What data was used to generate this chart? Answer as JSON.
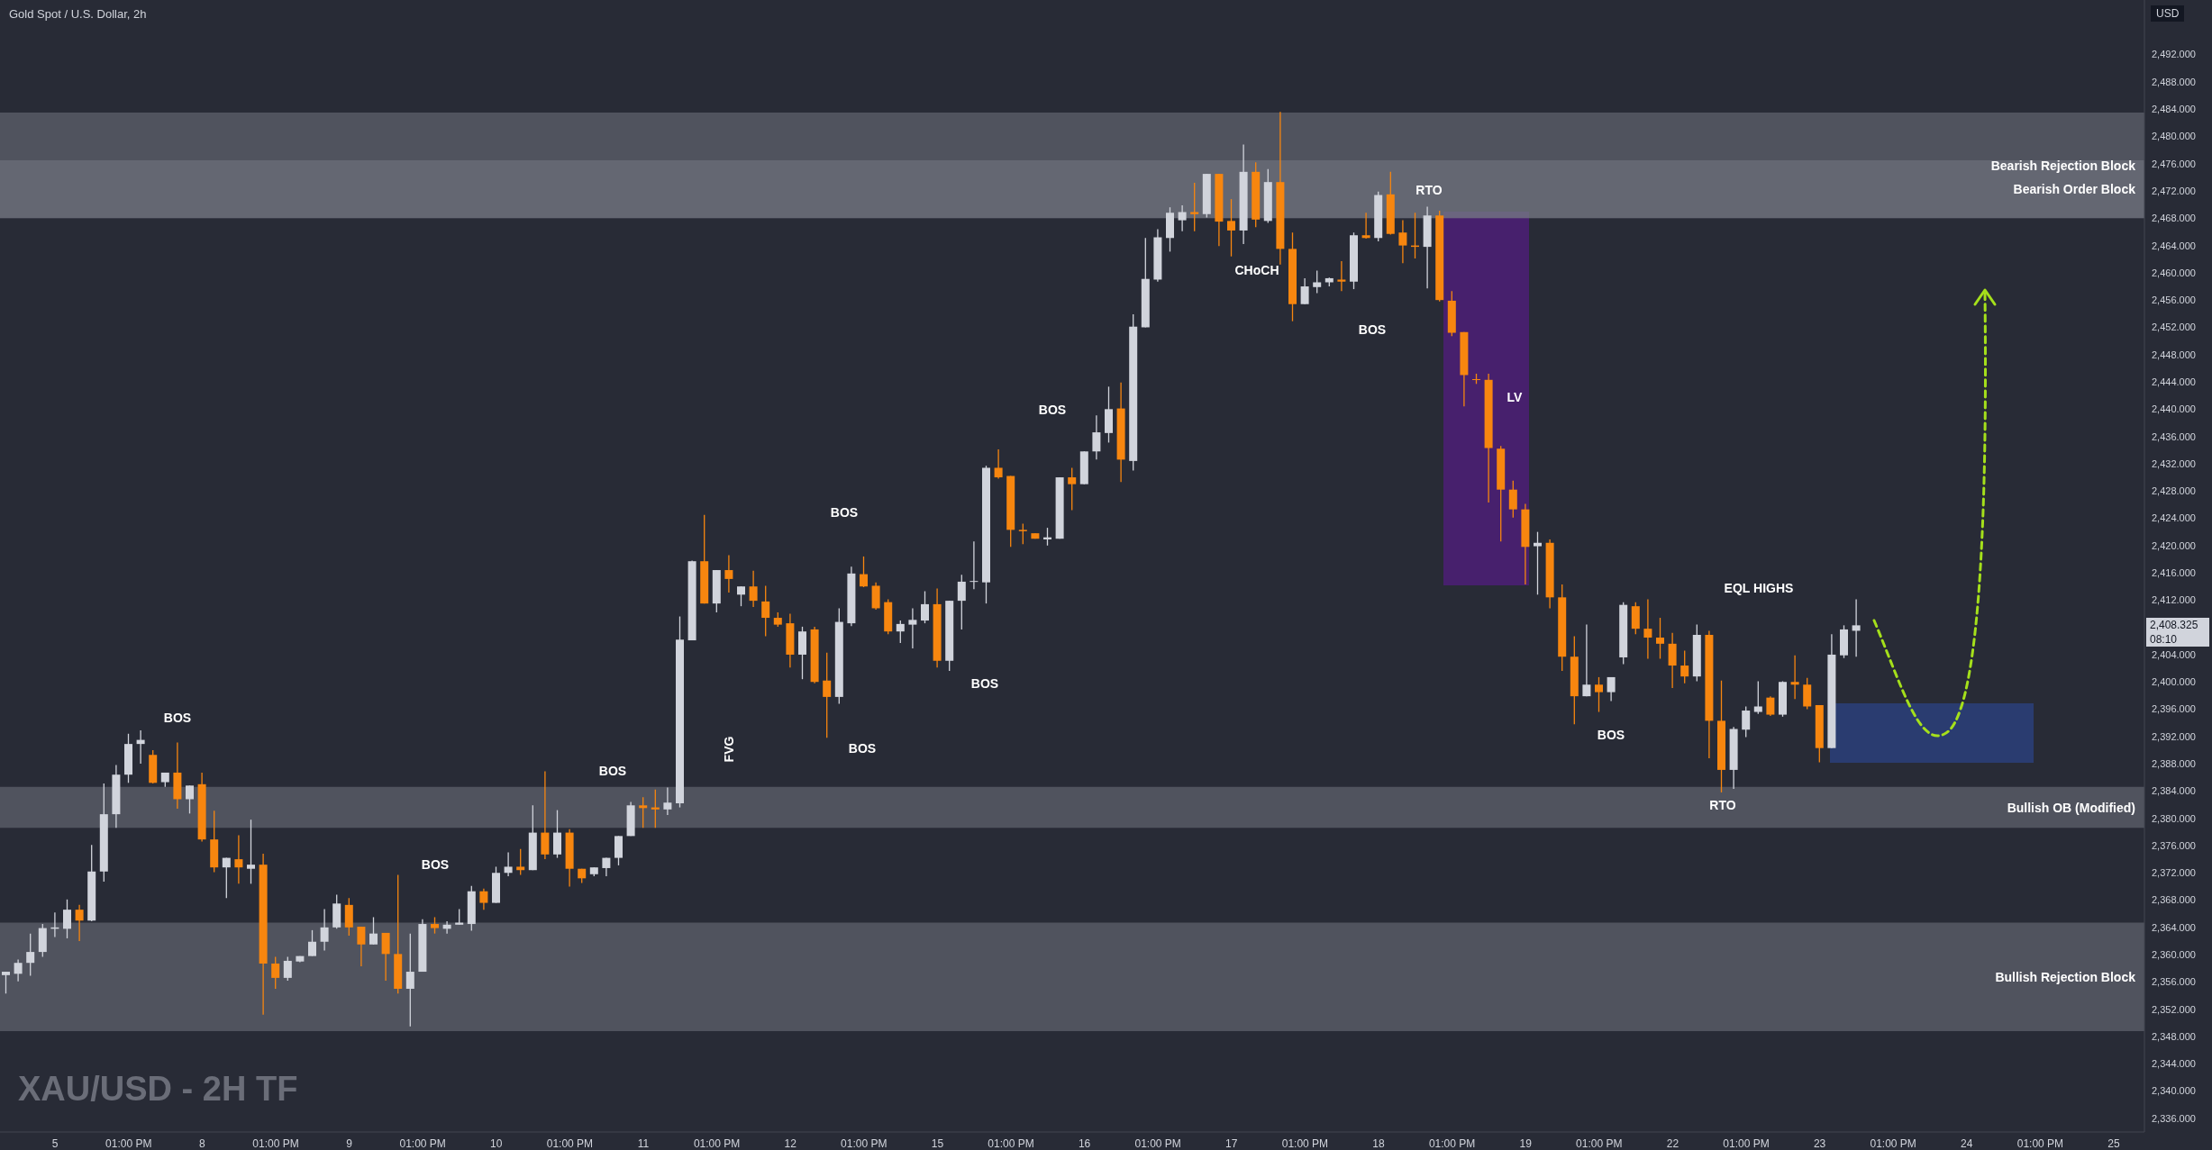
{
  "chart_data": {
    "type": "candlestick",
    "title": "Gold Spot / U.S. Dollar, 2h",
    "ylabel": "USD",
    "categories": [
      null,
      null,
      null,
      null,
      "5",
      null,
      null,
      null,
      null,
      null,
      "01:00 PM",
      null,
      null,
      null,
      null,
      null,
      "8",
      null,
      null,
      null,
      null,
      null,
      "01:00 PM",
      null,
      null,
      null,
      null,
      null,
      "9",
      null,
      null,
      null,
      null,
      null,
      "01:00 PM",
      null,
      null,
      null,
      null,
      null,
      "10",
      null,
      null,
      null,
      null,
      null,
      "01:00 PM",
      null,
      null,
      null,
      null,
      null,
      "11",
      null,
      null,
      null,
      null,
      null,
      "01:00 PM",
      null,
      null,
      null,
      null,
      null,
      "12",
      null,
      null,
      null,
      null,
      null,
      "01:00 PM",
      null,
      null,
      null,
      null,
      null,
      "15",
      null,
      null,
      null,
      null,
      null,
      "01:00 PM",
      null,
      null,
      null,
      null,
      null,
      "16",
      null,
      null,
      null,
      null,
      null,
      "01:00 PM",
      null,
      null,
      null,
      null,
      null,
      "17",
      null,
      null,
      null,
      null,
      null,
      "01:00 PM",
      null,
      null,
      null,
      null,
      null,
      "18",
      null,
      null,
      null,
      null,
      null,
      "01:00 PM",
      null,
      null,
      null,
      null,
      null,
      "19",
      null,
      null,
      null,
      null,
      null,
      "01:00 PM",
      null,
      null,
      null,
      null,
      null,
      "22",
      null,
      null,
      null,
      null,
      null,
      "01:00 PM",
      null,
      null,
      null,
      null,
      null,
      "23",
      null,
      null,
      null,
      null,
      null,
      "01:00 PM",
      null,
      null,
      null,
      null,
      null,
      "24",
      null,
      null,
      null,
      null,
      null,
      "01:00 PM",
      null,
      null,
      null,
      null,
      null,
      "25",
      null,
      null
    ],
    "ohlc": [
      [
        2357.0,
        2357.5,
        2354.3,
        2357.5
      ],
      [
        2357.2,
        2359.3,
        2356.1,
        2358.8
      ],
      [
        2358.8,
        2363.1,
        2356.9,
        2360.4
      ],
      [
        2360.4,
        2364.5,
        2359.7,
        2363.9
      ],
      [
        2363.8,
        2366.2,
        2362.6,
        2364.0
      ],
      [
        2363.8,
        2368.1,
        2362.4,
        2366.6
      ],
      [
        2366.6,
        2367.3,
        2362.0,
        2365.0
      ],
      [
        2365.0,
        2376.1,
        2364.9,
        2372.2
      ],
      [
        2372.2,
        2385.1,
        2370.7,
        2380.6
      ],
      [
        2380.6,
        2387.8,
        2378.6,
        2386.4
      ],
      [
        2386.4,
        2392.4,
        2385.2,
        2390.9
      ],
      [
        2390.9,
        2392.9,
        2388.0,
        2391.5
      ],
      [
        2389.3,
        2390.0,
        2385.1,
        2385.2
      ],
      [
        2385.3,
        2386.7,
        2384.6,
        2386.7
      ],
      [
        2386.7,
        2391.1,
        2381.4,
        2382.8
      ],
      [
        2382.8,
        2384.8,
        2380.7,
        2384.8
      ],
      [
        2385.0,
        2386.7,
        2376.6,
        2376.9
      ],
      [
        2376.9,
        2381.1,
        2372.1,
        2372.8
      ],
      [
        2372.8,
        2374.2,
        2368.3,
        2374.2
      ],
      [
        2374.0,
        2377.5,
        2370.4,
        2372.8
      ],
      [
        2372.6,
        2379.8,
        2370.4,
        2373.2
      ],
      [
        2373.2,
        2374.8,
        2351.2,
        2358.7
      ],
      [
        2358.7,
        2359.7,
        2355.0,
        2356.6
      ],
      [
        2356.6,
        2359.7,
        2356.2,
        2359.1
      ],
      [
        2359.0,
        2359.8,
        2358.9,
        2359.8
      ],
      [
        2359.8,
        2363.6,
        2359.8,
        2361.9
      ],
      [
        2361.9,
        2366.7,
        2360.6,
        2364.0
      ],
      [
        2364.0,
        2368.8,
        2363.8,
        2367.5
      ],
      [
        2367.3,
        2368.3,
        2362.8,
        2364.0
      ],
      [
        2364.1,
        2364.1,
        2358.3,
        2361.5
      ],
      [
        2361.5,
        2365.5,
        2361.5,
        2363.1
      ],
      [
        2363.2,
        2363.2,
        2356.2,
        2360.1
      ],
      [
        2360.1,
        2371.7,
        2354.3,
        2355.0
      ],
      [
        2355.0,
        2363.1,
        2349.5,
        2357.5
      ],
      [
        2357.5,
        2365.2,
        2357.5,
        2364.5
      ],
      [
        2364.5,
        2365.5,
        2363.1,
        2363.9
      ],
      [
        2363.8,
        2364.9,
        2363.1,
        2364.4
      ],
      [
        2364.4,
        2366.7,
        2364.4,
        2364.7
      ],
      [
        2364.5,
        2370.1,
        2363.5,
        2369.3
      ],
      [
        2369.3,
        2369.7,
        2366.6,
        2367.6
      ],
      [
        2367.6,
        2372.9,
        2367.6,
        2372.0
      ],
      [
        2372.0,
        2375.0,
        2371.5,
        2372.9
      ],
      [
        2372.9,
        2375.5,
        2371.7,
        2372.4
      ],
      [
        2372.4,
        2381.9,
        2372.4,
        2377.9
      ],
      [
        2377.9,
        2386.9,
        2374.0,
        2374.7
      ],
      [
        2374.7,
        2381.2,
        2374.2,
        2377.9
      ],
      [
        2377.9,
        2378.4,
        2370.0,
        2372.6
      ],
      [
        2372.6,
        2372.6,
        2370.5,
        2371.2
      ],
      [
        2371.8,
        2372.8,
        2371.5,
        2372.8
      ],
      [
        2372.7,
        2374.2,
        2371.5,
        2374.2
      ],
      [
        2374.2,
        2377.4,
        2373.1,
        2377.4
      ],
      [
        2377.4,
        2382.4,
        2377.4,
        2381.9
      ],
      [
        2381.9,
        2383.1,
        2378.6,
        2381.5
      ],
      [
        2381.6,
        2384.2,
        2378.6,
        2381.3
      ],
      [
        2381.3,
        2384.5,
        2380.5,
        2382.3
      ],
      [
        2382.2,
        2409.6,
        2381.6,
        2406.2
      ],
      [
        2406.1,
        2417.8,
        2406.1,
        2417.7
      ],
      [
        2417.7,
        2424.5,
        2411.5,
        2411.5
      ],
      [
        2411.5,
        2416.4,
        2410.2,
        2416.4
      ],
      [
        2416.4,
        2418.6,
        2413.1,
        2415.1
      ],
      [
        2412.8,
        2414.0,
        2411.1,
        2414.0
      ],
      [
        2414.0,
        2416.3,
        2411.0,
        2411.9
      ],
      [
        2411.8,
        2414.1,
        2406.7,
        2409.4
      ],
      [
        2409.4,
        2410.2,
        2408.1,
        2408.4
      ],
      [
        2408.6,
        2410.0,
        2402.1,
        2404.0
      ],
      [
        2404.0,
        2408.1,
        2400.4,
        2407.4
      ],
      [
        2407.7,
        2408.1,
        2399.8,
        2400.0
      ],
      [
        2400.2,
        2404.3,
        2391.8,
        2397.8
      ],
      [
        2397.8,
        2410.8,
        2396.8,
        2408.8
      ],
      [
        2408.6,
        2416.9,
        2408.2,
        2415.9
      ],
      [
        2415.8,
        2418.4,
        2413.9,
        2414.0
      ],
      [
        2414.1,
        2414.6,
        2410.6,
        2410.8
      ],
      [
        2411.7,
        2412.1,
        2407.0,
        2407.4
      ],
      [
        2407.4,
        2409.0,
        2405.7,
        2408.5
      ],
      [
        2408.4,
        2410.8,
        2404.9,
        2409.1
      ],
      [
        2409.0,
        2413.3,
        2408.6,
        2411.4
      ],
      [
        2411.4,
        2413.7,
        2402.1,
        2403.1
      ],
      [
        2403.1,
        2411.9,
        2401.6,
        2411.9
      ],
      [
        2411.9,
        2415.7,
        2407.7,
        2414.7
      ],
      [
        2414.7,
        2420.6,
        2413.6,
        2414.8
      ],
      [
        2414.6,
        2431.7,
        2411.5,
        2431.4
      ],
      [
        2431.4,
        2434.1,
        2429.8,
        2430.0
      ],
      [
        2430.2,
        2430.2,
        2419.8,
        2422.3
      ],
      [
        2422.3,
        2423.2,
        2420.2,
        2422.1
      ],
      [
        2421.8,
        2421.8,
        2421.0,
        2421.0
      ],
      [
        2420.9,
        2422.6,
        2420.0,
        2421.2
      ],
      [
        2421.0,
        2430.0,
        2421.0,
        2430.0
      ],
      [
        2430.0,
        2431.4,
        2425.2,
        2429.0
      ],
      [
        2429.0,
        2433.8,
        2429.0,
        2433.8
      ],
      [
        2433.8,
        2439.1,
        2432.6,
        2436.6
      ],
      [
        2436.5,
        2443.3,
        2435.1,
        2440.0
      ],
      [
        2440.1,
        2443.9,
        2429.3,
        2432.6
      ],
      [
        2432.4,
        2453.9,
        2431.0,
        2452.1
      ],
      [
        2452.0,
        2465.1,
        2452.0,
        2459.1
      ],
      [
        2459.0,
        2466.4,
        2458.7,
        2465.2
      ],
      [
        2465.1,
        2469.6,
        2463.1,
        2468.8
      ],
      [
        2467.7,
        2469.9,
        2466.1,
        2468.9
      ],
      [
        2468.9,
        2473.2,
        2466.1,
        2468.6
      ],
      [
        2468.6,
        2474.5,
        2468.1,
        2474.5
      ],
      [
        2474.5,
        2474.5,
        2463.9,
        2467.5
      ],
      [
        2467.6,
        2470.8,
        2462.4,
        2466.2
      ],
      [
        2466.2,
        2478.8,
        2464.2,
        2474.8
      ],
      [
        2474.8,
        2476.2,
        2466.7,
        2467.8
      ],
      [
        2467.6,
        2475.2,
        2467.3,
        2473.3
      ],
      [
        2473.3,
        2483.6,
        2461.2,
        2463.5
      ],
      [
        2463.5,
        2465.9,
        2452.9,
        2455.4
      ],
      [
        2455.4,
        2459.2,
        2455.4,
        2458.0
      ],
      [
        2457.9,
        2460.3,
        2457.0,
        2458.6
      ],
      [
        2458.6,
        2459.3,
        2458.0,
        2459.2
      ],
      [
        2459.0,
        2461.7,
        2457.3,
        2458.7
      ],
      [
        2458.7,
        2465.9,
        2457.6,
        2465.5
      ],
      [
        2465.5,
        2468.8,
        2465.0,
        2465.1
      ],
      [
        2465.1,
        2471.9,
        2464.6,
        2471.4
      ],
      [
        2471.5,
        2474.8,
        2465.6,
        2465.7
      ],
      [
        2465.9,
        2467.7,
        2461.4,
        2464.0
      ],
      [
        2464.0,
        2468.8,
        2462.1,
        2463.8
      ],
      [
        2463.8,
        2469.7,
        2457.7,
        2468.4
      ],
      [
        2468.4,
        2469.1,
        2455.8,
        2456.0
      ],
      [
        2455.9,
        2457.3,
        2450.7,
        2451.2
      ],
      [
        2451.3,
        2451.3,
        2440.4,
        2445.0
      ],
      [
        2444.4,
        2445.2,
        2443.7,
        2444.3
      ],
      [
        2444.3,
        2445.2,
        2426.3,
        2434.3
      ],
      [
        2434.2,
        2434.6,
        2420.6,
        2428.2
      ],
      [
        2428.2,
        2429.5,
        2424.1,
        2425.3
      ],
      [
        2425.3,
        2426.1,
        2414.3,
        2419.8
      ],
      [
        2419.9,
        2422.0,
        2412.8,
        2420.4
      ],
      [
        2420.4,
        2420.9,
        2410.8,
        2412.4
      ],
      [
        2412.4,
        2414.3,
        2401.6,
        2403.7
      ],
      [
        2403.7,
        2406.7,
        2393.8,
        2397.9
      ],
      [
        2397.9,
        2408.4,
        2397.9,
        2399.6
      ],
      [
        2399.6,
        2400.7,
        2395.6,
        2398.5
      ],
      [
        2398.5,
        2400.7,
        2397.2,
        2400.7
      ],
      [
        2403.6,
        2411.7,
        2402.6,
        2411.3
      ],
      [
        2411.1,
        2411.7,
        2407.0,
        2407.8
      ],
      [
        2407.8,
        2412.1,
        2403.4,
        2406.5
      ],
      [
        2406.5,
        2409.4,
        2403.4,
        2405.6
      ],
      [
        2405.6,
        2407.2,
        2399.1,
        2402.4
      ],
      [
        2402.4,
        2404.6,
        2399.8,
        2400.8
      ],
      [
        2400.8,
        2408.4,
        2400.1,
        2406.9
      ],
      [
        2406.9,
        2407.5,
        2388.8,
        2394.3
      ],
      [
        2394.3,
        2400.2,
        2383.8,
        2387.1
      ],
      [
        2387.1,
        2393.4,
        2384.3,
        2393.1
      ],
      [
        2393.0,
        2396.4,
        2391.9,
        2395.8
      ],
      [
        2395.6,
        2400.1,
        2395.3,
        2396.4
      ],
      [
        2397.7,
        2397.9,
        2395.0,
        2395.2
      ],
      [
        2395.2,
        2400.1,
        2394.9,
        2400.0
      ],
      [
        2400.0,
        2403.9,
        2397.5,
        2399.6
      ],
      [
        2399.6,
        2400.6,
        2396.0,
        2396.4
      ],
      [
        2396.6,
        2396.6,
        2388.2,
        2390.3
      ],
      [
        2390.3,
        2407.0,
        2390.3,
        2404.0
      ],
      [
        2403.9,
        2408.3,
        2403.5,
        2407.7
      ],
      [
        2407.5,
        2412.1,
        2403.7,
        2408.3
      ],
      null,
      null,
      null,
      null,
      null,
      null,
      null,
      null,
      null,
      null,
      null,
      null,
      null,
      null,
      null,
      null,
      null,
      null,
      null,
      null,
      null,
      null,
      null
    ],
    "colors": [
      "#d1d4dc",
      "#d1d4dc",
      "#d1d4dc",
      "#d1d4dc",
      "#d1d4dc",
      "#d1d4dc",
      "#f7860f",
      "#d1d4dc",
      "#d1d4dc",
      "#d1d4dc",
      "#d1d4dc",
      "#d1d4dc",
      "#f7860f",
      "#d1d4dc",
      "#f7860f",
      "#d1d4dc",
      "#f7860f",
      "#f7860f",
      "#d1d4dc",
      "#f7860f",
      "#d1d4dc",
      "#f7860f",
      "#f7860f",
      "#d1d4dc",
      "#d1d4dc",
      "#d1d4dc",
      "#d1d4dc",
      "#d1d4dc",
      "#f7860f",
      "#f7860f",
      "#d1d4dc",
      "#f7860f",
      "#f7860f",
      "#d1d4dc",
      "#d1d4dc",
      "#f7860f",
      "#d1d4dc",
      "#d1d4dc",
      "#d1d4dc",
      "#f7860f",
      "#d1d4dc",
      "#d1d4dc",
      "#f7860f",
      "#d1d4dc",
      "#f7860f",
      "#d1d4dc",
      "#f7860f",
      "#f7860f",
      "#d1d4dc",
      "#d1d4dc",
      "#d1d4dc",
      "#d1d4dc",
      "#f7860f",
      "#f7860f",
      "#d1d4dc",
      "#d1d4dc",
      "#d1d4dc",
      "#f7860f",
      "#d1d4dc",
      "#f7860f",
      "#d1d4dc",
      "#f7860f",
      "#f7860f",
      "#f7860f",
      "#f7860f",
      "#d1d4dc",
      "#f7860f",
      "#f7860f",
      "#d1d4dc",
      "#d1d4dc",
      "#f7860f",
      "#f7860f",
      "#f7860f",
      "#d1d4dc",
      "#d1d4dc",
      "#d1d4dc",
      "#f7860f",
      "#d1d4dc",
      "#d1d4dc",
      "#d1d4dc",
      "#d1d4dc",
      "#f7860f",
      "#f7860f",
      "#f7860f",
      "#f7860f",
      "#d1d4dc",
      "#d1d4dc",
      "#f7860f",
      "#d1d4dc",
      "#d1d4dc",
      "#d1d4dc",
      "#f7860f",
      "#d1d4dc",
      "#d1d4dc",
      "#d1d4dc",
      "#d1d4dc",
      "#d1d4dc",
      "#f7860f",
      "#d1d4dc",
      "#f7860f",
      "#f7860f",
      "#d1d4dc",
      "#f7860f",
      "#d1d4dc",
      "#f7860f",
      "#f7860f",
      "#d1d4dc",
      "#d1d4dc",
      "#d1d4dc",
      "#f7860f",
      "#d1d4dc",
      "#f7860f",
      "#d1d4dc",
      "#f7860f",
      "#f7860f",
      "#f7860f",
      "#d1d4dc",
      "#f7860f",
      "#f7860f",
      "#f7860f",
      "#f7860f",
      "#f7860f",
      "#f7860f",
      "#f7860f",
      "#f7860f",
      "#d1d4dc",
      "#f7860f",
      "#f7860f",
      "#f7860f",
      "#d1d4dc",
      "#f7860f",
      "#d1d4dc",
      "#d1d4dc",
      "#f7860f",
      "#f7860f",
      "#f7860f",
      "#f7860f",
      "#f7860f",
      "#d1d4dc",
      "#f7860f",
      "#f7860f",
      "#d1d4dc",
      "#d1d4dc",
      "#d1d4dc",
      "#f7860f",
      "#d1d4dc",
      "#f7860f",
      "#f7860f",
      "#f7860f",
      "#d1d4dc",
      "#d1d4dc",
      "#d1d4dc",
      null,
      null,
      null,
      null,
      null,
      null,
      null,
      null,
      null,
      null,
      null,
      null,
      null,
      null,
      null,
      null,
      null,
      null,
      null,
      null,
      null,
      null,
      null
    ],
    "ylim": [
      2334,
      2500
    ],
    "yticks": [
      {
        "value": 2336,
        "label": "2,336.000"
      },
      {
        "value": 2340,
        "label": "2,340.000"
      },
      {
        "value": 2344,
        "label": "2,344.000"
      },
      {
        "value": 2348,
        "label": "2,348.000"
      },
      {
        "value": 2352,
        "label": "2,352.000"
      },
      {
        "value": 2356,
        "label": "2,356.000"
      },
      {
        "value": 2360,
        "label": "2,360.000"
      },
      {
        "value": 2364,
        "label": "2,364.000"
      },
      {
        "value": 2368,
        "label": "2,368.000"
      },
      {
        "value": 2372,
        "label": "2,372.000"
      },
      {
        "value": 2376,
        "label": "2,376.000"
      },
      {
        "value": 2380,
        "label": "2,380.000"
      },
      {
        "value": 2384,
        "label": "2,384.000"
      },
      {
        "value": 2388,
        "label": "2,388.000"
      },
      {
        "value": 2392,
        "label": "2,392.000"
      },
      {
        "value": 2396,
        "label": "2,396.000"
      },
      {
        "value": 2400,
        "label": "2,400.000"
      },
      {
        "value": 2404,
        "label": "2,404.000"
      },
      {
        "value": 2412,
        "label": "2,412.000"
      },
      {
        "value": 2416,
        "label": "2,416.000"
      },
      {
        "value": 2420,
        "label": "2,420.000"
      },
      {
        "value": 2424,
        "label": "2,424.000"
      },
      {
        "value": 2428,
        "label": "2,428.000"
      },
      {
        "value": 2432,
        "label": "2,432.000"
      },
      {
        "value": 2436,
        "label": "2,436.000"
      },
      {
        "value": 2440,
        "label": "2,440.000"
      },
      {
        "value": 2444,
        "label": "2,444.000"
      },
      {
        "value": 2448,
        "label": "2,448.000"
      },
      {
        "value": 2452,
        "label": "2,452.000"
      },
      {
        "value": 2456,
        "label": "2,456.000"
      },
      {
        "value": 2460,
        "label": "2,460.000"
      },
      {
        "value": 2464,
        "label": "2,464.000"
      },
      {
        "value": 2468,
        "label": "2,468.000"
      },
      {
        "value": 2472,
        "label": "2,472.000"
      },
      {
        "value": 2476,
        "label": "2,476.000"
      },
      {
        "value": 2480,
        "label": "2,480.000"
      },
      {
        "value": 2484,
        "label": "2,484.000"
      },
      {
        "value": 2488,
        "label": "2,488.000"
      },
      {
        "value": 2492,
        "label": "2,492.000"
      }
    ],
    "bands": [
      {
        "axis": "y",
        "from": 2468.0,
        "to": 2483.5,
        "label": "Bearish Rejection Block",
        "color": "#787b86"
      },
      {
        "axis": "y",
        "from": 2468.0,
        "to": 2476.5,
        "label": "Bearish Order Block",
        "color": "#787b86"
      },
      {
        "axis": "y",
        "from": 2378.6,
        "to": 2384.6,
        "label": "Bullish OB (Modified)",
        "color": "#787b86"
      },
      {
        "axis": "y",
        "from": 2348.8,
        "to": 2364.7,
        "label": "Bullish Rejection Block",
        "color": "#787b86"
      }
    ],
    "annotations": [
      "BOS",
      "BOS",
      "BOS",
      "FVG",
      "BOS",
      "BOS",
      "BOS",
      "BOS",
      "CHoCH",
      "RTO",
      "BOS",
      "LV",
      "EQL HIGHS",
      "BOS",
      "RTO",
      "2,408.325",
      "08:10",
      "XAU/USD - 2H TF"
    ]
  }
}
